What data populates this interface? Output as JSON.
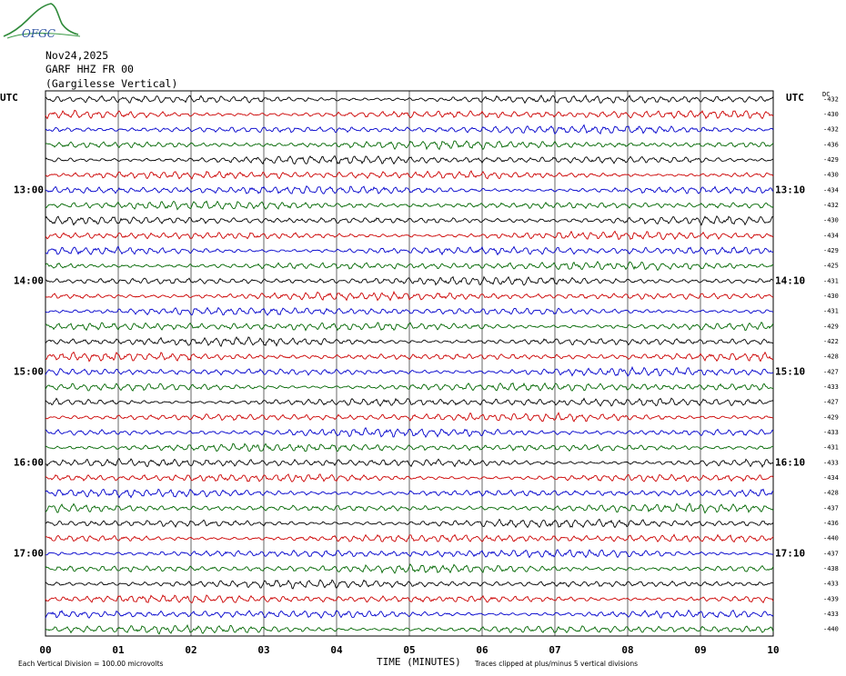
{
  "header": {
    "logo_text": "OFGC",
    "date": "Nov24,2025",
    "station": "GARF HHZ FR 00",
    "location": "(Gargilesse Vertical)"
  },
  "chart_data": {
    "type": "line",
    "title": "Nov24,2025",
    "subtitle": "GARF HHZ FR 00 (Gargilesse Vertical)",
    "xlabel": "TIME (MINUTES)",
    "ylabel": "",
    "x_ticks": [
      "00",
      "01",
      "02",
      "03",
      "04",
      "05",
      "06",
      "07",
      "08",
      "09",
      "10"
    ],
    "xlim": [
      0,
      10
    ],
    "left_axis_label": "UTC",
    "right_axis_label": "UTC",
    "dc_label": "DC",
    "left_hour_labels": [
      {
        "row": 6,
        "text": "13:00"
      },
      {
        "row": 12,
        "text": "14:00"
      },
      {
        "row": 18,
        "text": "15:00"
      },
      {
        "row": 24,
        "text": "16:00"
      },
      {
        "row": 30,
        "text": "17:00"
      }
    ],
    "right_hour_labels": [
      {
        "row": 6,
        "text": "13:10"
      },
      {
        "row": 12,
        "text": "14:10"
      },
      {
        "row": 18,
        "text": "15:10"
      },
      {
        "row": 24,
        "text": "16:10"
      },
      {
        "row": 30,
        "text": "17:10"
      }
    ],
    "trace_colors": [
      "#000000",
      "#cc0000",
      "#0000cc",
      "#006600"
    ],
    "dc_offsets": [
      "-432",
      "-430",
      "-432",
      "-436",
      "-429",
      "-430",
      "-434",
      "-432",
      "-430",
      "-434",
      "-429",
      "-425",
      "-431",
      "-430",
      "-431",
      "-429",
      "-422",
      "-428",
      "-427",
      "-433",
      "-427",
      "-429",
      "-433",
      "-431",
      "-433",
      "-434",
      "-428",
      "-437",
      "-436",
      "-440",
      "-437",
      "-438",
      "-433",
      "-439",
      "-433",
      "-440"
    ],
    "grid": true,
    "footer_left": "Each Vertical Division =  100.00 microvolts",
    "footer_right": "Traces clipped at plus/minus 5 vertical divisions"
  }
}
